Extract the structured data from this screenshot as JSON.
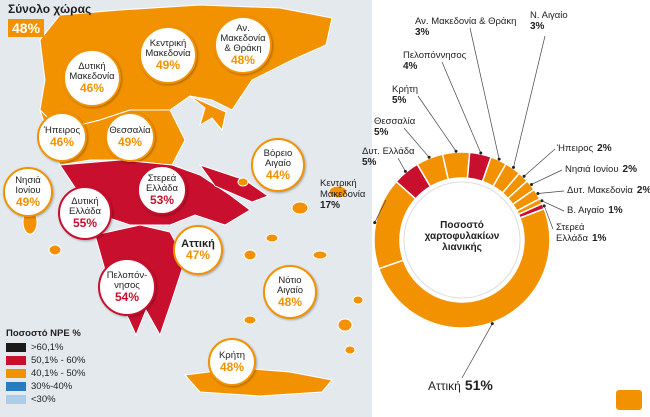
{
  "chart_data": [
    {
      "type": "map",
      "title": "Σύνολο χώρας",
      "total": 48,
      "total_label": "48%",
      "categories": [
        "Αν. Μακεδονία & Θράκη",
        "Κεντρική Μακεδονία",
        "Δυτική Μακεδονία",
        "Ήπειρος",
        "Θεσσαλία",
        "Βόρειο Αιγαίο",
        "Νησιά Ιονίου",
        "Δυτική Ελλάδα",
        "Στερεά Ελλάδα",
        "Αττική",
        "Πελοπόν-νησος",
        "Νότιο Αιγαίο",
        "Κρήτη"
      ],
      "values": [
        48,
        49,
        46,
        46,
        49,
        44,
        49,
        55,
        53,
        47,
        54,
        48,
        48
      ],
      "value_labels": [
        "48%",
        "49%",
        "46%",
        "46%",
        "49%",
        "44%",
        "49%",
        "55%",
        "53%",
        "47%",
        "54%",
        "48%",
        "48%"
      ],
      "colors": [
        "#f39200",
        "#f39200",
        "#f39200",
        "#f39200",
        "#f39200",
        "#f39200",
        "#f39200",
        "#c8102e",
        "#c8102e",
        "#f39200",
        "#c8102e",
        "#f39200",
        "#f39200"
      ],
      "legend": {
        "title": "Ποσοστό NPE %",
        "items": [
          {
            "label": ">60,1%",
            "color": "#1a1a1a"
          },
          {
            "label": "50,1% - 60%",
            "color": "#c8102e"
          },
          {
            "label": "40,1% - 50%",
            "color": "#f39200"
          },
          {
            "label": "30%-40%",
            "color": "#2b7bbf"
          },
          {
            "label": "<30%",
            "color": "#a9cdea"
          }
        ]
      }
    },
    {
      "type": "pie",
      "title": "Ποσοστό χαρτοφυλακίων λιανικής",
      "categories": [
        "Ν. Αιγαίο",
        "Ήπειρος",
        "Νησιά Ιονίου",
        "Δυτ. Μακεδονία",
        "Β. Αιγαίο",
        "Στερεά Ελλάδα",
        "Αττική",
        "Κεντρική Μακεδονία",
        "Δυτ. Ελλάδα",
        "Θεσσαλία",
        "Κρήτη",
        "Πελοπόννησος",
        "Αν. Μακεδονία & Θράκη"
      ],
      "values": [
        3,
        2,
        2,
        2,
        1,
        1,
        51,
        17,
        5,
        5,
        5,
        4,
        3
      ],
      "value_labels": [
        "3%",
        "2%",
        "2%",
        "2%",
        "1%",
        "1%",
        "51%",
        "17%",
        "5%",
        "5%",
        "5%",
        "4%",
        "3%"
      ],
      "colors": [
        "#f39200",
        "#f39200",
        "#f39200",
        "#f39200",
        "#f39200",
        "#c8102e",
        "#f39200",
        "#f39200",
        "#c8102e",
        "#f39200",
        "#f39200",
        "#c8102e",
        "#f39200"
      ]
    }
  ]
}
